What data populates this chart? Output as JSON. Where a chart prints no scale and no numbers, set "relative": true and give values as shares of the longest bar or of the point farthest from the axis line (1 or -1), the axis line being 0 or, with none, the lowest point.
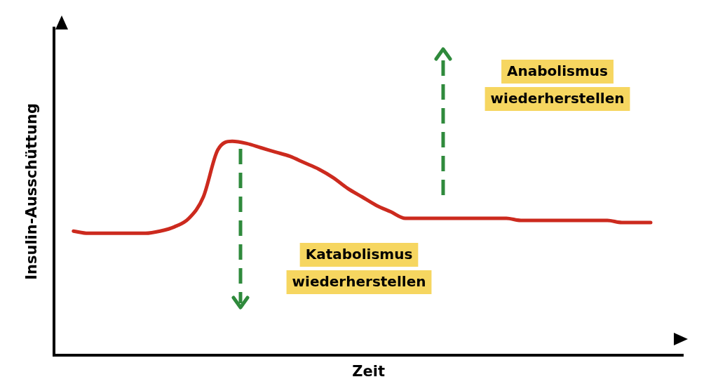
{
  "chart_data": {
    "type": "line",
    "relative": true,
    "xlabel": "Zeit",
    "ylabel": "Insulin-Ausschüttung",
    "categories": [
      null,
      null,
      null,
      null,
      null,
      null,
      null,
      null,
      null,
      null,
      null,
      null,
      null,
      null,
      null,
      null,
      null,
      null,
      null,
      null,
      null,
      null,
      null,
      null,
      null,
      null,
      null,
      null,
      null,
      null,
      null,
      null,
      null,
      null,
      null,
      null,
      null,
      null,
      null,
      null,
      null
    ],
    "series": [
      {
        "color": "#cc2a1e",
        "values": [
          0.58,
          0.57,
          0.57,
          0.57,
          0.57,
          0.57,
          0.58,
          0.6,
          0.64,
          0.74,
          0.96,
          1,
          0.99,
          0.97,
          0.95,
          0.93,
          0.9,
          0.87,
          0.83,
          0.78,
          0.74,
          0.7,
          0.67,
          0.64,
          0.64,
          0.64,
          0.64,
          0.64,
          0.64,
          0.64,
          0.64,
          0.63,
          0.63,
          0.63,
          0.63,
          0.63,
          0.63,
          0.63,
          0.62,
          0.62,
          0.62
        ]
      }
    ],
    "annotations": [
      "Anabolismus wiederherstellen",
      "Katabolismus wiederherstellen"
    ],
    "grid": false,
    "legend": false,
    "marker": "none",
    "line_style": "solid"
  }
}
